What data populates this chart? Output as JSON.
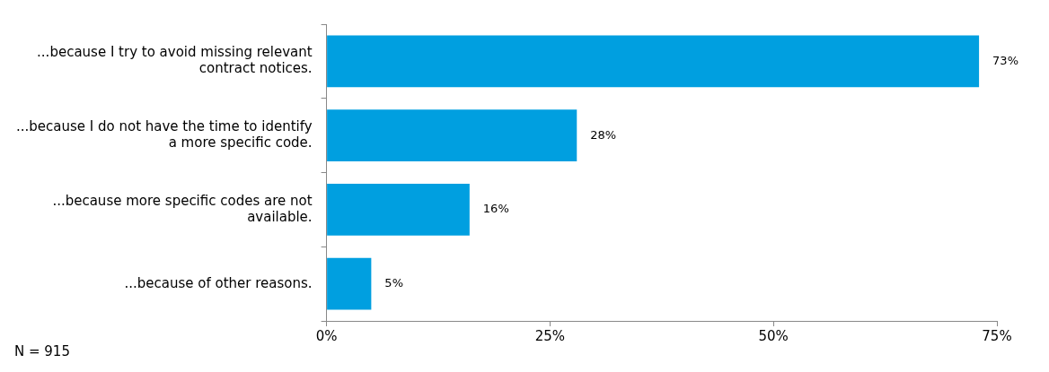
{
  "chart_data": {
    "type": "bar",
    "orientation": "horizontal",
    "categories": [
      "...because I try to avoid missing relevant contract notices.",
      "...because I do not have the time to identify a more specific code.",
      "...because more specific codes are not available.",
      "...because of other reasons."
    ],
    "values": [
      73,
      28,
      16,
      5
    ],
    "value_labels": [
      "73%",
      "28%",
      "16%",
      "5%"
    ],
    "color": "#009fe0",
    "xlim": [
      0,
      75
    ],
    "xticks": [
      {
        "value": 0,
        "label": "0%"
      },
      {
        "value": 25,
        "label": "25%"
      },
      {
        "value": 50,
        "label": "50%"
      },
      {
        "value": 75,
        "label": "75%"
      }
    ],
    "grid": false,
    "legend": false,
    "annotations": [
      "N = 915"
    ]
  }
}
